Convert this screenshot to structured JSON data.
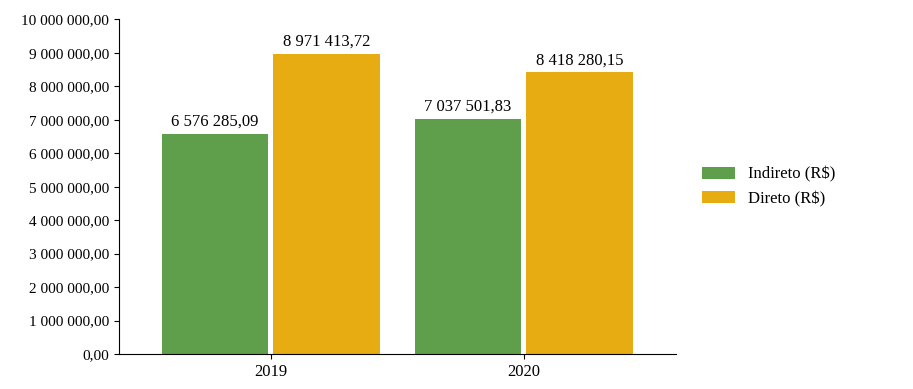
{
  "chart_data": {
    "type": "bar",
    "categories": [
      "2019",
      "2020"
    ],
    "series": [
      {
        "name": "Indireto (R$)",
        "color": "#5f9e4a",
        "values": [
          6576285.09,
          7037501.83
        ],
        "value_labels": [
          "6 576 285,09",
          "7 037 501,83"
        ]
      },
      {
        "name": "Direto (R$)",
        "color": "#e6ac12",
        "values": [
          8971413.72,
          8418280.15
        ],
        "value_labels": [
          "8 971 413,72",
          "8 418 280,15"
        ]
      }
    ],
    "ylim": [
      0,
      10000000
    ],
    "yticks": [
      {
        "value": 0,
        "label": "0,00"
      },
      {
        "value": 1000000,
        "label": "1 000 000,00"
      },
      {
        "value": 2000000,
        "label": "2 000 000,00"
      },
      {
        "value": 3000000,
        "label": "3 000 000,00"
      },
      {
        "value": 4000000,
        "label": "4 000 000,00"
      },
      {
        "value": 5000000,
        "label": "5 000 000,00"
      },
      {
        "value": 6000000,
        "label": "6 000 000,00"
      },
      {
        "value": 7000000,
        "label": "7 000 000,00"
      },
      {
        "value": 8000000,
        "label": "8 000 000,00"
      },
      {
        "value": 9000000,
        "label": "9 000 000,00"
      },
      {
        "value": 10000000,
        "label": "10 000 000,00"
      }
    ],
    "grid": false,
    "legend": "right",
    "data_labels": true
  }
}
